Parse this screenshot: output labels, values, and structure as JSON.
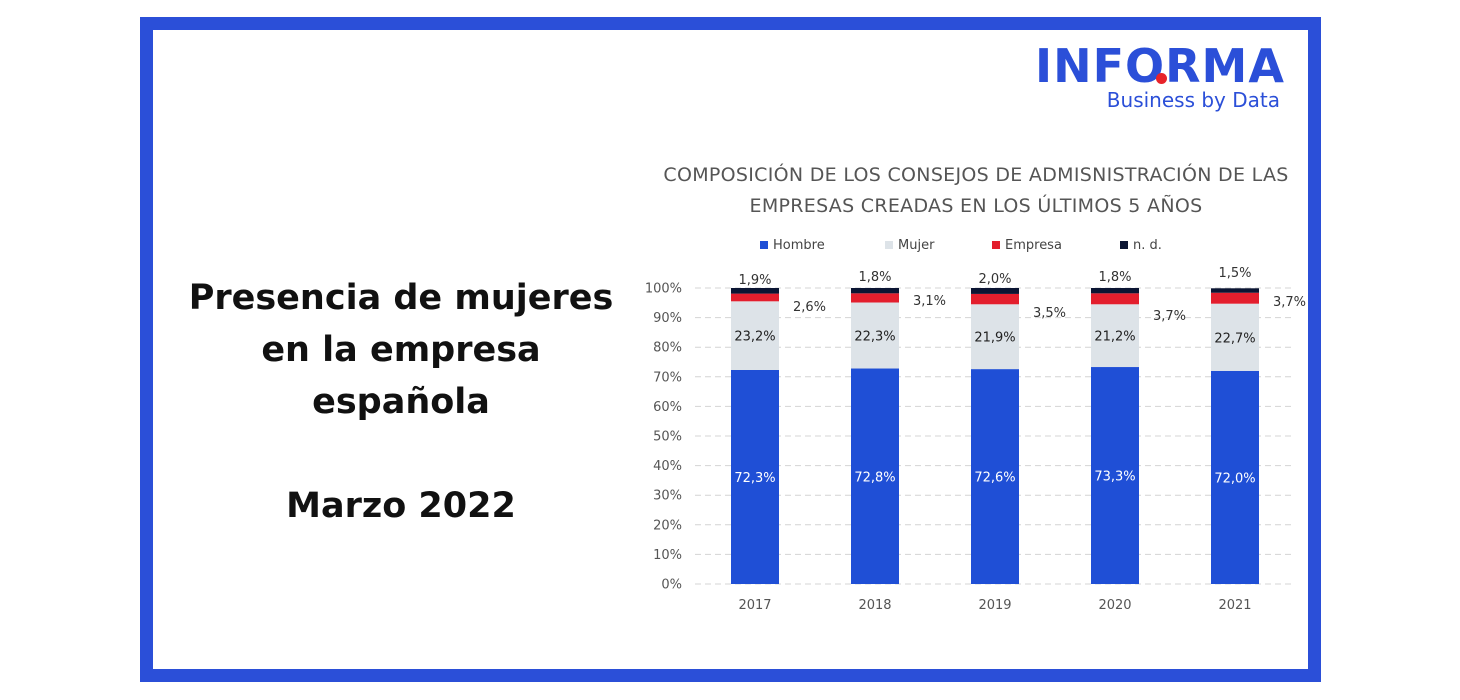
{
  "headline": {
    "line1": "Presencia de mujeres",
    "line2": "en la empresa",
    "line3": "española",
    "date": "Marzo 2022"
  },
  "logo": {
    "word": "INFORMA",
    "tagline": "Business by Data"
  },
  "colors": {
    "frame": "#2b4fd8",
    "hombre": "#1f4fd6",
    "mujer": "#dde3e8",
    "empresa": "#e31e2d",
    "nd": "#0b1533"
  },
  "chart_data": {
    "type": "bar",
    "stacked": true,
    "title_line1": "COMPOSICIÓN DE LOS CONSEJOS DE ADMISNISTRACIÓN DE LAS",
    "title_line2": "EMPRESAS CREADAS EN LOS ÚLTIMOS 5 AÑOS",
    "categories": [
      "2017",
      "2018",
      "2019",
      "2020",
      "2021"
    ],
    "ylim": [
      0,
      100
    ],
    "yticks": [
      "0%",
      "10%",
      "20%",
      "30%",
      "40%",
      "50%",
      "60%",
      "70%",
      "80%",
      "90%",
      "100%"
    ],
    "grid": true,
    "legend_position": "top",
    "series": [
      {
        "name": "Hombre",
        "color": "#1f4fd6",
        "values": [
          72.3,
          72.8,
          72.6,
          73.3,
          72.0
        ],
        "labels": [
          "72,3%",
          "72,8%",
          "72,6%",
          "73,3%",
          "72,0%"
        ]
      },
      {
        "name": "Mujer",
        "color": "#dde3e8",
        "values": [
          23.2,
          22.3,
          21.9,
          21.2,
          22.7
        ],
        "labels": [
          "23,2%",
          "22,3%",
          "21,9%",
          "21,2%",
          "22,7%"
        ]
      },
      {
        "name": "Empresa",
        "color": "#e31e2d",
        "values": [
          2.6,
          3.1,
          3.5,
          3.7,
          3.7
        ],
        "labels": [
          "2,6%",
          "3,1%",
          "3,5%",
          "3,7%",
          "3,7%"
        ]
      },
      {
        "name": "n. d.",
        "color": "#0b1533",
        "values": [
          1.9,
          1.8,
          2.0,
          1.8,
          1.5
        ],
        "labels": [
          "1,9%",
          "1,8%",
          "2,0%",
          "1,8%",
          "1,5%"
        ]
      }
    ]
  }
}
